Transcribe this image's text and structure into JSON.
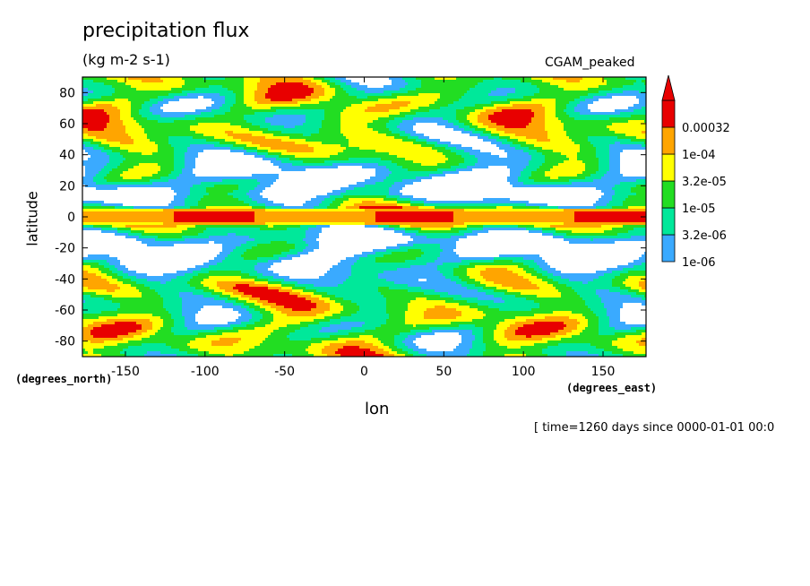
{
  "figure": {
    "title": "precipitation flux",
    "units": "(kg m-2 s-1)",
    "model": "CGAM_peaked",
    "time_label": "[ time=1260 days since 0000-01-01 00:0"
  },
  "colors": {
    "white_band": "#ffffff",
    "level_1": "#3aaaff",
    "level_2": "#00e89a",
    "level_3": "#22dd22",
    "level_4": "#ffff00",
    "level_5": "#ffa500",
    "level_6": "#e80000"
  },
  "chart_data": {
    "type": "heatmap",
    "title": "precipitation flux",
    "subtitle": "(kg m-2 s-1)",
    "xlabel": "lon",
    "xlabel_units": "(degrees_east)",
    "ylabel": "latitude",
    "ylabel_units": "(degrees_north)",
    "xlim": [
      -177,
      177
    ],
    "ylim": [
      -90,
      90
    ],
    "x_ticks": [
      -150,
      -100,
      -50,
      0,
      50,
      100,
      150
    ],
    "y_ticks": [
      80,
      60,
      40,
      20,
      0,
      -20,
      -40,
      -60,
      -80
    ],
    "x_tick_labels": [
      "-150",
      "-100",
      "-50",
      "0",
      "50",
      "100",
      "150"
    ],
    "y_tick_labels": [
      "80",
      "60",
      "40",
      "20",
      "0",
      "-20",
      "-40",
      "-60",
      "-80"
    ],
    "colorbar": {
      "levels": [
        "1e-06",
        "3.2e-06",
        "1e-05",
        "3.2e-05",
        "1e-04",
        "0.00032"
      ],
      "colors": [
        "#3aaaff",
        "#00e89a",
        "#22dd22",
        "#ffff00",
        "#ffa500",
        "#e80000"
      ],
      "extend": "max"
    },
    "latitude_profile": [
      {
        "lat": 88,
        "level": 3
      },
      {
        "lat": 80,
        "level": 3
      },
      {
        "lat": 70,
        "level": 3
      },
      {
        "lat": 60,
        "level": 3
      },
      {
        "lat": 45,
        "level": 3
      },
      {
        "lat": 30,
        "level": 1
      },
      {
        "lat": 15,
        "level": 0
      },
      {
        "lat": 8,
        "level": 2
      },
      {
        "lat": 3,
        "level": 5
      },
      {
        "lat": 0,
        "level": 5
      },
      {
        "lat": -3,
        "level": 5
      },
      {
        "lat": -8,
        "level": 2
      },
      {
        "lat": -15,
        "level": 0
      },
      {
        "lat": -30,
        "level": 1
      },
      {
        "lat": -45,
        "level": 3
      },
      {
        "lat": -60,
        "level": 3
      },
      {
        "lat": -70,
        "level": 3
      },
      {
        "lat": -80,
        "level": 3
      },
      {
        "lat": -88,
        "level": 3
      }
    ]
  }
}
